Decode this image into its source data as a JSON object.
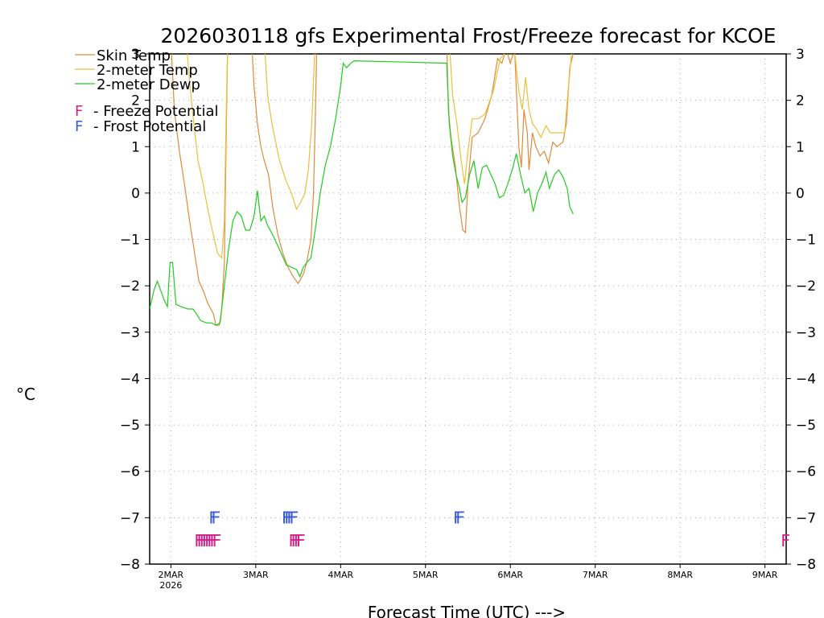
{
  "chart_data": {
    "type": "line",
    "title": "2026030118 gfs Experimental Frost/Freeze forecast for KCOE",
    "xlabel": "Forecast Time (UTC) --->",
    "ylabel": "°C",
    "xlim": [
      1.75,
      9.25
    ],
    "ylim": [
      -8,
      3
    ],
    "grid": true,
    "yticks": [
      3,
      2,
      1,
      0,
      -1,
      -2,
      -3,
      -4,
      -5,
      -6,
      -7,
      -8
    ],
    "xticks": [
      {
        "value": 2,
        "label": "2MAR",
        "sublabel": "2026"
      },
      {
        "value": 3,
        "label": "3MAR"
      },
      {
        "value": 4,
        "label": "4MAR"
      },
      {
        "value": 5,
        "label": "5MAR"
      },
      {
        "value": 6,
        "label": "6MAR"
      },
      {
        "value": 7,
        "label": "7MAR"
      },
      {
        "value": 8,
        "label": "8MAR"
      },
      {
        "value": 9,
        "label": "9MAR"
      }
    ],
    "series": [
      {
        "name": "Skin Temp",
        "color": "#e08a3c",
        "points": [
          [
            2.0,
            3.3
          ],
          [
            2.04,
            1.8
          ],
          [
            2.1,
            0.9
          ],
          [
            2.16,
            0.2
          ],
          [
            2.22,
            -0.6
          ],
          [
            2.28,
            -1.3
          ],
          [
            2.33,
            -1.9
          ],
          [
            2.38,
            -2.1
          ],
          [
            2.44,
            -2.4
          ],
          [
            2.5,
            -2.6
          ],
          [
            2.53,
            -2.85
          ],
          [
            2.57,
            -2.85
          ],
          [
            2.6,
            -2.5
          ],
          [
            2.63,
            -1.5
          ],
          [
            2.65,
            1.0
          ],
          [
            2.67,
            3.3
          ],
          [
            2.95,
            3.3
          ],
          [
            2.98,
            2.3
          ],
          [
            3.02,
            1.5
          ],
          [
            3.06,
            1.0
          ],
          [
            3.1,
            0.7
          ],
          [
            3.15,
            0.4
          ],
          [
            3.2,
            -0.3
          ],
          [
            3.26,
            -0.9
          ],
          [
            3.32,
            -1.3
          ],
          [
            3.38,
            -1.6
          ],
          [
            3.44,
            -1.8
          ],
          [
            3.5,
            -1.95
          ],
          [
            3.56,
            -1.75
          ],
          [
            3.6,
            -1.5
          ],
          [
            3.65,
            -1.0
          ],
          [
            3.68,
            0.0
          ],
          [
            3.7,
            1.5
          ],
          [
            3.72,
            3.3
          ],
          [
            5.25,
            3.3
          ],
          [
            5.27,
            1.8
          ],
          [
            5.3,
            1.2
          ],
          [
            5.35,
            0.6
          ],
          [
            5.4,
            -0.3
          ],
          [
            5.44,
            -0.8
          ],
          [
            5.47,
            -0.85
          ],
          [
            5.5,
            0.2
          ],
          [
            5.55,
            1.2
          ],
          [
            5.62,
            1.3
          ],
          [
            5.7,
            1.6
          ],
          [
            5.78,
            2.1
          ],
          [
            5.85,
            2.9
          ],
          [
            5.9,
            2.8
          ],
          [
            5.95,
            3.1
          ],
          [
            6.0,
            2.8
          ],
          [
            6.05,
            3.1
          ],
          [
            6.1,
            1.0
          ],
          [
            6.13,
            0.55
          ],
          [
            6.16,
            1.8
          ],
          [
            6.2,
            1.3
          ],
          [
            6.22,
            0.5
          ],
          [
            6.26,
            1.3
          ],
          [
            6.3,
            1.0
          ],
          [
            6.35,
            0.8
          ],
          [
            6.4,
            0.9
          ],
          [
            6.45,
            0.65
          ],
          [
            6.5,
            1.1
          ],
          [
            6.55,
            1.0
          ],
          [
            6.62,
            1.1
          ],
          [
            6.66,
            1.5
          ],
          [
            6.7,
            2.7
          ],
          [
            6.74,
            3.0
          ]
        ]
      },
      {
        "name": "2-meter Temp",
        "color": "#e6c23a",
        "points": [
          [
            2.18,
            3.3
          ],
          [
            2.22,
            2.4
          ],
          [
            2.27,
            1.5
          ],
          [
            2.32,
            0.7
          ],
          [
            2.38,
            0.2
          ],
          [
            2.44,
            -0.4
          ],
          [
            2.5,
            -0.9
          ],
          [
            2.55,
            -1.3
          ],
          [
            2.6,
            -1.4
          ],
          [
            2.63,
            -0.6
          ],
          [
            2.65,
            1.5
          ],
          [
            2.67,
            3.3
          ],
          [
            3.1,
            3.3
          ],
          [
            3.14,
            2.1
          ],
          [
            3.2,
            1.4
          ],
          [
            3.28,
            0.7
          ],
          [
            3.35,
            0.3
          ],
          [
            3.42,
            0.0
          ],
          [
            3.48,
            -0.35
          ],
          [
            3.53,
            -0.2
          ],
          [
            3.58,
            0.0
          ],
          [
            3.62,
            0.5
          ],
          [
            3.66,
            1.5
          ],
          [
            3.7,
            3.3
          ],
          [
            5.28,
            3.3
          ],
          [
            5.32,
            2.1
          ],
          [
            5.37,
            1.5
          ],
          [
            5.42,
            0.7
          ],
          [
            5.46,
            0.2
          ],
          [
            5.5,
            0.9
          ],
          [
            5.55,
            1.6
          ],
          [
            5.62,
            1.6
          ],
          [
            5.7,
            1.7
          ],
          [
            5.8,
            2.2
          ],
          [
            5.88,
            2.9
          ],
          [
            5.95,
            3.05
          ],
          [
            6.0,
            3.0
          ],
          [
            6.05,
            3.05
          ],
          [
            6.1,
            2.2
          ],
          [
            6.14,
            1.8
          ],
          [
            6.18,
            2.5
          ],
          [
            6.22,
            1.8
          ],
          [
            6.26,
            1.5
          ],
          [
            6.3,
            1.4
          ],
          [
            6.36,
            1.2
          ],
          [
            6.42,
            1.45
          ],
          [
            6.47,
            1.3
          ],
          [
            6.52,
            1.3
          ],
          [
            6.6,
            1.3
          ],
          [
            6.64,
            1.3
          ],
          [
            6.68,
            2.2
          ],
          [
            6.72,
            3.0
          ]
        ]
      },
      {
        "name": "2-meter Dewp",
        "color": "#22cc22",
        "points": [
          [
            1.75,
            -2.5
          ],
          [
            1.8,
            -2.1
          ],
          [
            1.84,
            -1.9
          ],
          [
            1.88,
            -2.1
          ],
          [
            1.92,
            -2.3
          ],
          [
            1.96,
            -2.45
          ],
          [
            1.99,
            -1.5
          ],
          [
            2.02,
            -1.5
          ],
          [
            2.06,
            -2.4
          ],
          [
            2.12,
            -2.45
          ],
          [
            2.2,
            -2.5
          ],
          [
            2.26,
            -2.5
          ],
          [
            2.3,
            -2.6
          ],
          [
            2.35,
            -2.75
          ],
          [
            2.42,
            -2.8
          ],
          [
            2.48,
            -2.8
          ],
          [
            2.53,
            -2.85
          ],
          [
            2.58,
            -2.8
          ],
          [
            2.63,
            -2.0
          ],
          [
            2.68,
            -1.2
          ],
          [
            2.73,
            -0.6
          ],
          [
            2.78,
            -0.4
          ],
          [
            2.83,
            -0.5
          ],
          [
            2.88,
            -0.8
          ],
          [
            2.93,
            -0.8
          ],
          [
            2.98,
            -0.5
          ],
          [
            3.02,
            0.05
          ],
          [
            3.06,
            -0.6
          ],
          [
            3.1,
            -0.5
          ],
          [
            3.14,
            -0.7
          ],
          [
            3.2,
            -0.9
          ],
          [
            3.25,
            -1.1
          ],
          [
            3.3,
            -1.3
          ],
          [
            3.36,
            -1.55
          ],
          [
            3.42,
            -1.6
          ],
          [
            3.48,
            -1.65
          ],
          [
            3.52,
            -1.8
          ],
          [
            3.56,
            -1.6
          ],
          [
            3.6,
            -1.5
          ],
          [
            3.65,
            -1.4
          ],
          [
            3.7,
            -0.8
          ],
          [
            3.76,
            0.0
          ],
          [
            3.82,
            0.6
          ],
          [
            3.88,
            1.0
          ],
          [
            3.94,
            1.6
          ],
          [
            4.0,
            2.3
          ],
          [
            4.03,
            2.8
          ],
          [
            4.07,
            2.7
          ],
          [
            4.12,
            2.8
          ],
          [
            4.16,
            2.85
          ],
          [
            5.25,
            2.8
          ],
          [
            5.28,
            1.5
          ],
          [
            5.32,
            0.8
          ],
          [
            5.36,
            0.4
          ],
          [
            5.4,
            0.1
          ],
          [
            5.43,
            -0.2
          ],
          [
            5.47,
            -0.1
          ],
          [
            5.52,
            0.4
          ],
          [
            5.57,
            0.7
          ],
          [
            5.62,
            0.1
          ],
          [
            5.67,
            0.55
          ],
          [
            5.72,
            0.6
          ],
          [
            5.77,
            0.4
          ],
          [
            5.82,
            0.2
          ],
          [
            5.87,
            -0.1
          ],
          [
            5.92,
            -0.05
          ],
          [
            5.97,
            0.2
          ],
          [
            6.03,
            0.55
          ],
          [
            6.07,
            0.85
          ],
          [
            6.12,
            0.4
          ],
          [
            6.17,
            0.0
          ],
          [
            6.22,
            0.1
          ],
          [
            6.27,
            -0.4
          ],
          [
            6.32,
            0.0
          ],
          [
            6.37,
            0.2
          ],
          [
            6.42,
            0.45
          ],
          [
            6.46,
            0.1
          ],
          [
            6.52,
            0.4
          ],
          [
            6.57,
            0.5
          ],
          [
            6.62,
            0.35
          ],
          [
            6.67,
            0.1
          ],
          [
            6.7,
            -0.3
          ],
          [
            6.74,
            -0.45
          ]
        ]
      }
    ],
    "frost_freeze_markers": {
      "frost_label": "F",
      "freeze_label": "F",
      "frost_color": "#3a5bd0",
      "freeze_color": "#d0208a",
      "frost_times": [
        2.5,
        2.53,
        3.36,
        3.39,
        3.42,
        3.45,
        5.38,
        5.41
      ],
      "freeze_times": [
        2.33,
        2.36,
        2.39,
        2.42,
        2.45,
        2.48,
        2.51,
        2.54,
        3.44,
        3.47,
        3.5,
        3.53,
        9.25
      ]
    },
    "legend": {
      "placement": "top-left",
      "entries": [
        {
          "label": "Skin Temp",
          "color": "#e08a3c"
        },
        {
          "label": "2-meter Temp",
          "color": "#e6c23a"
        },
        {
          "label": "2-meter Dewp",
          "color": "#22cc22"
        }
      ],
      "potential_entries": [
        {
          "mark": "F",
          "text": "- Freeze Potential",
          "color": "#d0208a"
        },
        {
          "mark": "F",
          "text": "- Frost Potential",
          "color": "#3a5bd0"
        }
      ]
    }
  }
}
